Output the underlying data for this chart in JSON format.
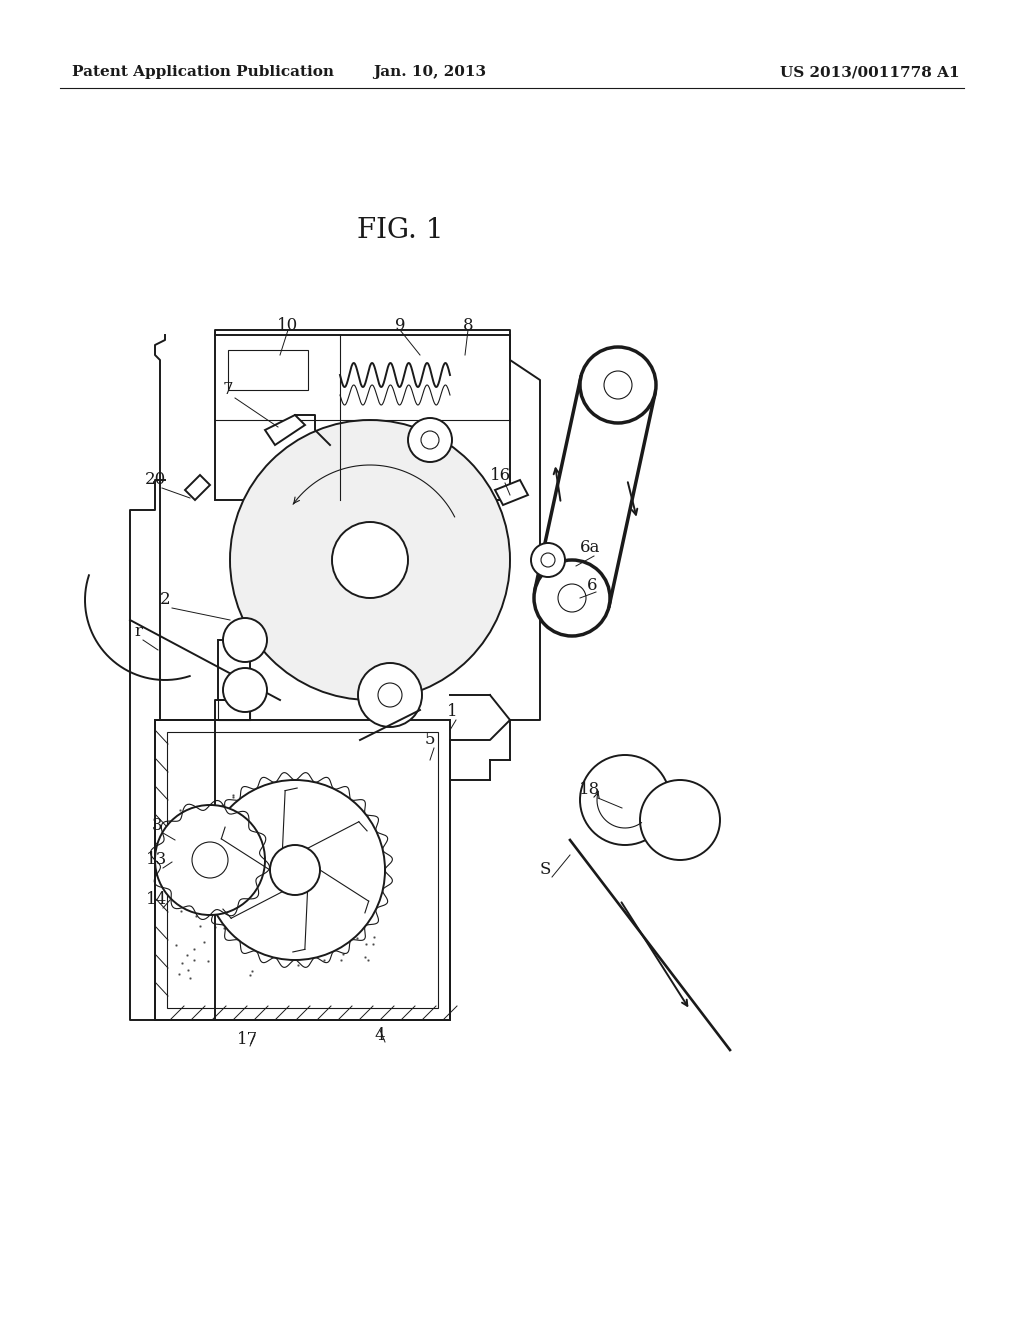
{
  "background_color": "#ffffff",
  "header_left": "Patent Application Publication",
  "header_center": "Jan. 10, 2013",
  "header_right": "US 2013/0011778 A1",
  "figure_title": "FIG. 1",
  "color": "#1a1a1a",
  "lw_main": 1.4,
  "lw_thin": 0.8,
  "lw_thick": 2.5
}
